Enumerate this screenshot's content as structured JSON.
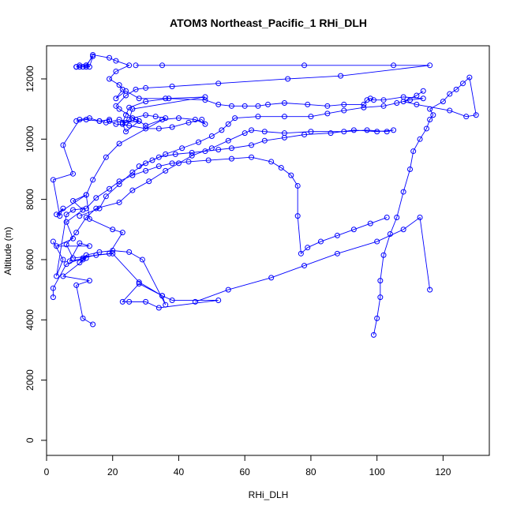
{
  "chart_data": {
    "type": "line",
    "title": "ATOM3 Northeast_Pacific_1 RHi_DLH",
    "xlabel": "RHi_DLH",
    "ylabel": "Altitude (m)",
    "xlim": [
      0,
      134
    ],
    "ylim": [
      -500,
      13100
    ],
    "xticks": [
      "0",
      "20",
      "40",
      "60",
      "80",
      "100",
      "120"
    ],
    "yticks": [
      "0",
      "2000",
      "4000",
      "6000",
      "8000",
      "10000",
      "12000"
    ],
    "grid": false,
    "legend": "none",
    "series_color": "#0000ff",
    "marker": "open-circle",
    "series": [
      {
        "x": [
          14,
          11,
          9,
          13,
          5,
          12,
          7,
          10,
          13,
          3,
          8,
          6,
          11,
          8,
          12,
          3,
          5,
          4,
          2,
          8,
          5,
          10,
          13,
          16,
          18,
          22,
          24,
          28,
          26,
          30,
          33,
          36,
          22,
          18,
          14,
          12,
          13,
          20,
          23,
          19,
          8,
          6,
          9,
          12,
          15,
          22,
          26,
          31,
          36,
          40,
          44,
          50,
          55,
          60,
          62,
          66,
          72,
          80,
          90,
          97,
          103,
          105,
          100,
          93,
          86,
          78,
          72,
          66,
          62,
          56,
          52,
          48,
          44,
          39,
          34,
          30,
          26,
          22,
          18,
          16,
          10
        ],
        "y": [
          3850,
          4050,
          5150,
          5300,
          5450,
          6050,
          5950,
          6550,
          6450,
          6450,
          6700,
          7250,
          7650,
          7950,
          8150,
          7500,
          7700,
          7450,
          8650,
          8850,
          9800,
          10650,
          10700,
          10600,
          10550,
          10650,
          10550,
          10600,
          10700,
          10800,
          10750,
          10700,
          9850,
          9400,
          8650,
          8150,
          7350,
          7000,
          6900,
          6200,
          6050,
          6500,
          6900,
          7400,
          7700,
          7900,
          8300,
          8600,
          8950,
          9200,
          9450,
          9700,
          9950,
          10200,
          10300,
          10250,
          10200,
          10250,
          10250,
          10300,
          10250,
          10300,
          10250,
          10300,
          10200,
          10150,
          10050,
          9950,
          9800,
          9700,
          9650,
          9600,
          9550,
          9500,
          9400,
          9200,
          8900,
          8500,
          8100,
          7700,
          7450
        ]
      },
      {
        "x": [
          2,
          2,
          6,
          11,
          15,
          20,
          28,
          35,
          38,
          52,
          34,
          30,
          25,
          23,
          28,
          35,
          36,
          29,
          25,
          20,
          16,
          12,
          11,
          10
        ],
        "y": [
          4750,
          5050,
          5850,
          6050,
          6150,
          6200,
          5250,
          4800,
          4650,
          4650,
          4400,
          4600,
          4600,
          4600,
          5200,
          4800,
          4500,
          6000,
          6250,
          6300,
          6250,
          6150,
          6000,
          5900
        ],
        "name": ""
      },
      {
        "x": [
          9,
          10,
          11,
          12,
          13,
          14,
          12,
          10,
          9,
          12,
          14,
          19,
          21,
          25,
          21,
          19,
          22,
          23,
          21,
          24,
          28,
          36,
          48,
          26,
          25,
          23,
          24,
          28,
          30,
          35,
          40,
          45,
          48,
          47,
          43,
          38,
          34,
          30,
          25,
          21,
          19,
          19,
          16,
          12,
          9
        ],
        "y": [
          12400,
          12400,
          12400,
          12450,
          12400,
          12750,
          12450,
          12450,
          12400,
          12400,
          12800,
          12700,
          12600,
          12450,
          12250,
          12000,
          11800,
          11650,
          11350,
          11600,
          11350,
          11350,
          11400,
          11000,
          10650,
          10500,
          10250,
          10600,
          10450,
          10650,
          10700,
          10650,
          10500,
          10650,
          10550,
          10400,
          10350,
          10350,
          10450,
          10500,
          10600,
          10650,
          10600,
          10650,
          10600
        ]
      },
      {
        "x": [
          27,
          35,
          78,
          105,
          116,
          89,
          73,
          52,
          38,
          30,
          27,
          24,
          21,
          22,
          27,
          23,
          24,
          25,
          30,
          37,
          48,
          52,
          56,
          60,
          64,
          67,
          72,
          79,
          85,
          90,
          96,
          97,
          98,
          99,
          102,
          108,
          114,
          110,
          106,
          102,
          96,
          90,
          85,
          80,
          72,
          64,
          57,
          55,
          53,
          50,
          46,
          41,
          36,
          32,
          28
        ],
        "y": [
          12450,
          12450,
          12450,
          12450,
          12450,
          12100,
          12000,
          11850,
          11750,
          11700,
          11650,
          11450,
          11100,
          11000,
          10650,
          10550,
          10800,
          11050,
          11250,
          11350,
          11300,
          11150,
          11100,
          11100,
          11100,
          11150,
          11200,
          11150,
          11100,
          11150,
          11150,
          11300,
          11350,
          11300,
          11300,
          11400,
          11350,
          11300,
          11200,
          11100,
          11050,
          10950,
          10850,
          10750,
          10750,
          10750,
          10700,
          10500,
          10300,
          10100,
          9900,
          9700,
          9500,
          9300,
          9100
        ]
      },
      {
        "x": [
          2,
          5,
          3,
          6,
          8,
          12,
          15,
          19,
          22,
          26,
          30,
          34,
          38,
          43,
          49,
          56,
          62,
          68,
          71,
          74,
          76,
          76,
          77,
          79,
          83,
          88,
          93,
          98,
          103
        ],
        "y": [
          6600,
          6000,
          5450,
          7500,
          7650,
          7700,
          8050,
          8350,
          8600,
          8800,
          8950,
          9100,
          9200,
          9250,
          9300,
          9350,
          9400,
          9250,
          9050,
          8800,
          8450,
          7450,
          6200,
          6400,
          6600,
          6800,
          7000,
          7200,
          7400
        ]
      },
      {
        "x": [
          99,
          100,
          101,
          101,
          102,
          104,
          106,
          108,
          110,
          111,
          113,
          115,
          116,
          117,
          116,
          120,
          122,
          124,
          126,
          128,
          130,
          127,
          122,
          112,
          108,
          112,
          114
        ],
        "y": [
          3500,
          4050,
          4750,
          5300,
          6150,
          6850,
          7400,
          8250,
          9000,
          9600,
          10000,
          10350,
          10650,
          10800,
          11000,
          11250,
          11500,
          11650,
          11850,
          12050,
          10800,
          10750,
          10950,
          11150,
          11250,
          11450,
          11600
        ]
      },
      {
        "x": [
          45,
          55,
          68,
          78,
          88,
          100,
          108,
          113,
          116
        ],
        "y": [
          4600,
          5000,
          5400,
          5800,
          6200,
          6600,
          7000,
          7400,
          5000
        ]
      }
    ]
  }
}
